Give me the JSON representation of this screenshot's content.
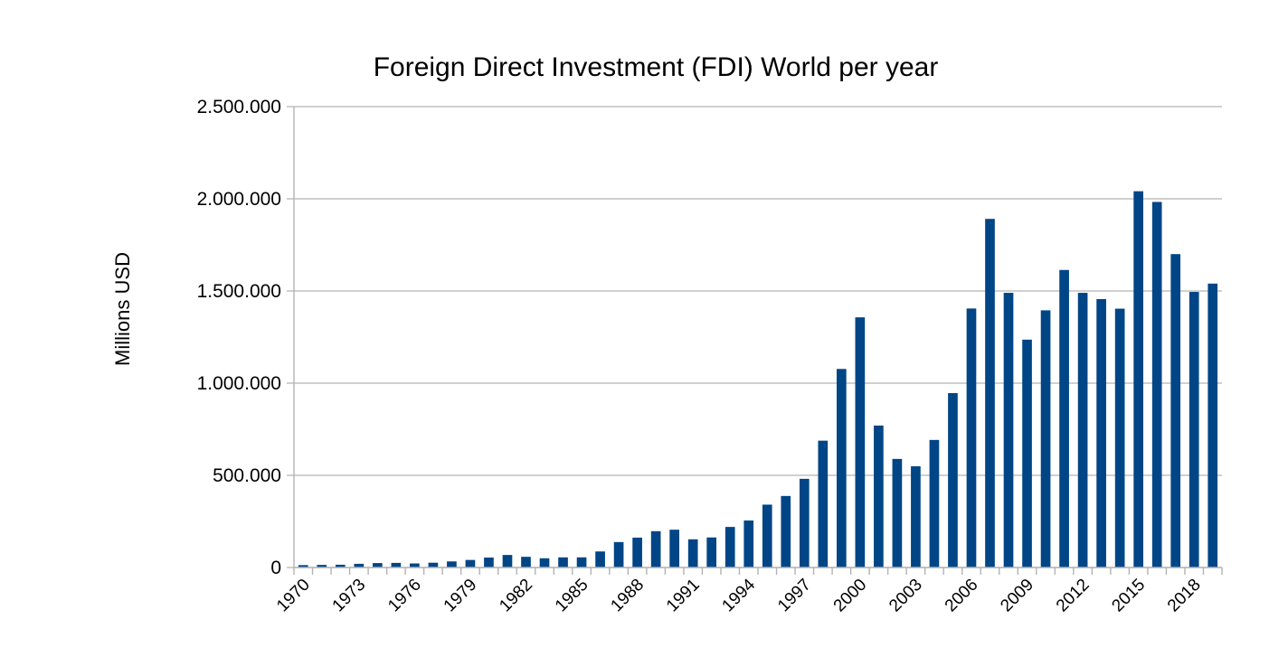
{
  "chart_data": {
    "type": "bar",
    "title": "Foreign Direct Investment (FDI) World per year",
    "xlabel": "",
    "ylabel": "Millions  USD",
    "ylim": [
      0,
      2500000
    ],
    "yticks": [
      0,
      500000,
      1000000,
      1500000,
      2000000,
      2500000
    ],
    "ytick_labels": [
      "0",
      "500.000",
      "1.000.000",
      "1.500.000",
      "2.000.000",
      "2.500.000"
    ],
    "xtick_labels": [
      "1970",
      "1973",
      "1976",
      "1979",
      "1982",
      "1985",
      "1988",
      "1991",
      "1994",
      "1997",
      "2000",
      "2003",
      "2006",
      "2009",
      "2012",
      "2015",
      "2018"
    ],
    "grid": true,
    "legend": "none",
    "bar_color": "#004586",
    "categories": [
      "1970",
      "1971",
      "1972",
      "1973",
      "1974",
      "1975",
      "1976",
      "1977",
      "1978",
      "1979",
      "1980",
      "1981",
      "1982",
      "1983",
      "1984",
      "1985",
      "1986",
      "1987",
      "1988",
      "1989",
      "1990",
      "1991",
      "1992",
      "1993",
      "1994",
      "1995",
      "1996",
      "1997",
      "1998",
      "1999",
      "2000",
      "2001",
      "2002",
      "2003",
      "2004",
      "2005",
      "2006",
      "2007",
      "2008",
      "2009",
      "2010",
      "2011",
      "2012",
      "2013",
      "2014",
      "2015",
      "2016",
      "2017",
      "2018",
      "2019"
    ],
    "values": [
      13000,
      14000,
      15000,
      20000,
      24000,
      25000,
      22000,
      26000,
      33000,
      41000,
      54000,
      68000,
      58000,
      50000,
      55000,
      55000,
      87000,
      138000,
      162000,
      197000,
      205000,
      153000,
      163000,
      220000,
      255000,
      341000,
      388000,
      481000,
      688000,
      1077000,
      1357000,
      770000,
      589000,
      549000,
      692000,
      946000,
      1405000,
      1891000,
      1490000,
      1236000,
      1395000,
      1614000,
      1490000,
      1456000,
      1404000,
      2041000,
      1983000,
      1700000,
      1495000,
      1540000
    ]
  }
}
